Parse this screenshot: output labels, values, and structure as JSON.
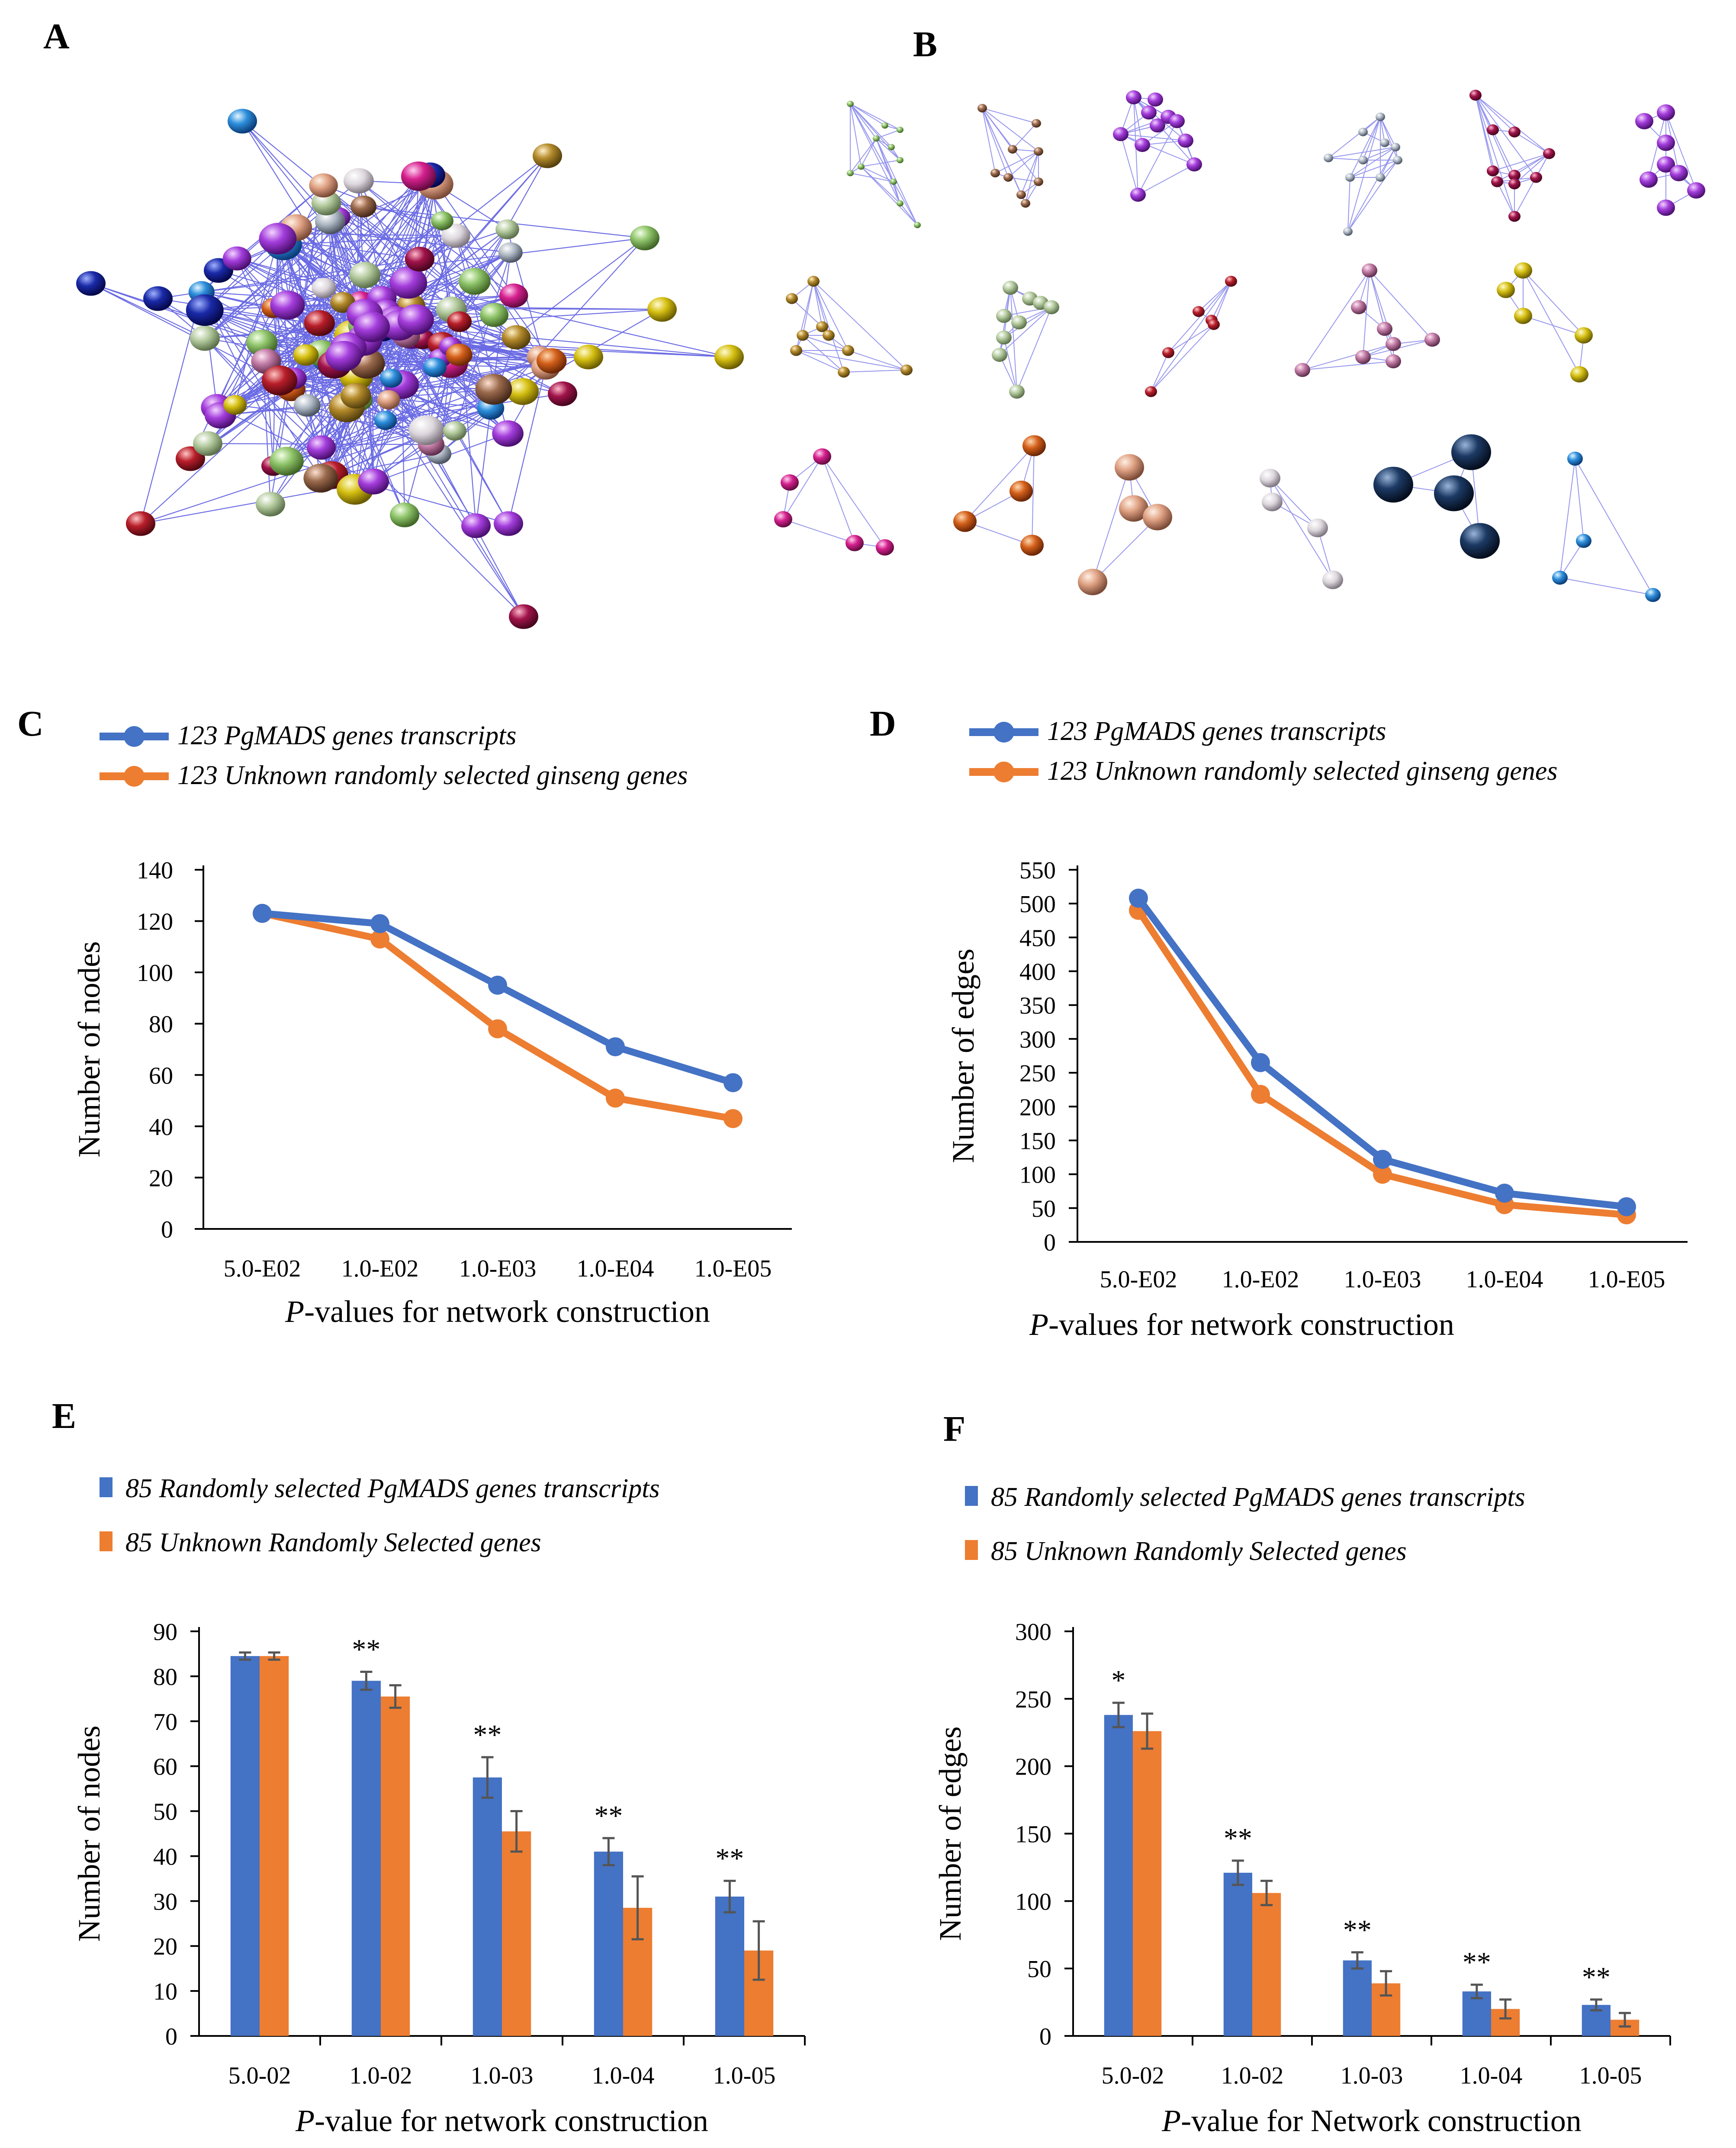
{
  "colors": {
    "series1": "#4472C4",
    "series2": "#ED7D31",
    "axis": "#000000",
    "edge": "#3a3adc"
  },
  "panels": {
    "A": "A",
    "B": "B",
    "C": "C",
    "D": "D",
    "E": "E",
    "F": "F"
  },
  "chart_data": [
    {
      "id": "C",
      "type": "line",
      "legend": [
        "123 PgMADS genes transcripts",
        "123 Unknown randomly selected  ginseng genes"
      ],
      "categories": [
        "5.0-E02",
        "1.0-E02",
        "1.0-E03",
        "1.0-E04",
        "1.0-E05"
      ],
      "series": [
        {
          "name": "123 PgMADS genes transcripts",
          "values": [
            123,
            119,
            95,
            71,
            57
          ]
        },
        {
          "name": "123 Unknown randomly selected  ginseng genes",
          "values": [
            123,
            113,
            78,
            51,
            43
          ]
        }
      ],
      "ylabel": "Number of nodes",
      "xlabel_italic": "P",
      "xlabel_rest": "-values for network construction",
      "ylim": [
        0,
        140
      ],
      "yticks": [
        "0",
        "20",
        "40",
        "60",
        "80",
        "100",
        "120",
        "140"
      ]
    },
    {
      "id": "D",
      "type": "line",
      "legend": [
        "123 PgMADS genes transcripts",
        "123 Unknown randomly selected  ginseng genes"
      ],
      "categories": [
        "5.0-E02",
        "1.0-E02",
        "1.0-E03",
        "1.0-E04",
        "1.0-E05"
      ],
      "series": [
        {
          "name": "123 PgMADS genes transcripts",
          "values": [
            508,
            265,
            122,
            72,
            52
          ]
        },
        {
          "name": "123 Unknown randomly selected  ginseng genes",
          "values": [
            490,
            218,
            100,
            55,
            40
          ]
        }
      ],
      "ylabel": "Number of edges",
      "xlabel_italic": "P",
      "xlabel_rest": "-values for network construction",
      "ylim": [
        0,
        550
      ],
      "yticks": [
        "0",
        "50",
        "100",
        "150",
        "200",
        "250",
        "300",
        "350",
        "400",
        "450",
        "500",
        "550"
      ]
    },
    {
      "id": "E",
      "type": "bar",
      "legend": [
        "85 Randomly selected PgMADS genes transcripts",
        "85 Unknown Randomly Selected genes"
      ],
      "categories": [
        "5.0-02",
        "1.0-02",
        "1.0-03",
        "1.0-04",
        "1.0-05"
      ],
      "series": [
        {
          "name": "85 Randomly selected PgMADS genes transcripts",
          "values": [
            84.5,
            79,
            57.5,
            41,
            31
          ],
          "errors": [
            0.8,
            2,
            4.5,
            3,
            3.5
          ]
        },
        {
          "name": "85 Unknown Randomly Selected genes",
          "values": [
            84.5,
            75.5,
            45.5,
            28.5,
            19
          ],
          "errors": [
            0.8,
            2.5,
            4.5,
            7,
            6.5
          ]
        }
      ],
      "significance": [
        "",
        "**",
        "**",
        "**",
        "**"
      ],
      "ylabel": "Number of nodes",
      "xlabel_italic": "P",
      "xlabel_rest": "-value for network construction",
      "ylim": [
        0,
        90
      ],
      "yticks": [
        "0",
        "10",
        "20",
        "30",
        "40",
        "50",
        "60",
        "70",
        "80",
        "90"
      ]
    },
    {
      "id": "F",
      "type": "bar",
      "legend": [
        "85 Randomly selected PgMADS genes transcripts",
        "85 Unknown Randomly Selected genes"
      ],
      "categories": [
        "5.0-02",
        "1.0-02",
        "1.0-03",
        "1.0-04",
        "1.0-05"
      ],
      "series": [
        {
          "name": "85 Randomly selected PgMADS genes transcripts",
          "values": [
            238,
            121,
            56,
            33,
            23
          ],
          "errors": [
            9,
            9,
            6,
            5,
            4
          ]
        },
        {
          "name": "85 Unknown Randomly Selected genes",
          "values": [
            226,
            106,
            39,
            20,
            12
          ],
          "errors": [
            13,
            9,
            9,
            7,
            5
          ]
        }
      ],
      "significance": [
        "*",
        "**",
        "**",
        "**",
        "**"
      ],
      "ylabel": "Number of edges",
      "xlabel_italic": "P",
      "xlabel_rest": "-value for Network construction",
      "ylim": [
        0,
        300
      ],
      "yticks": [
        "0",
        "50",
        "100",
        "150",
        "200",
        "250",
        "300"
      ]
    }
  ]
}
